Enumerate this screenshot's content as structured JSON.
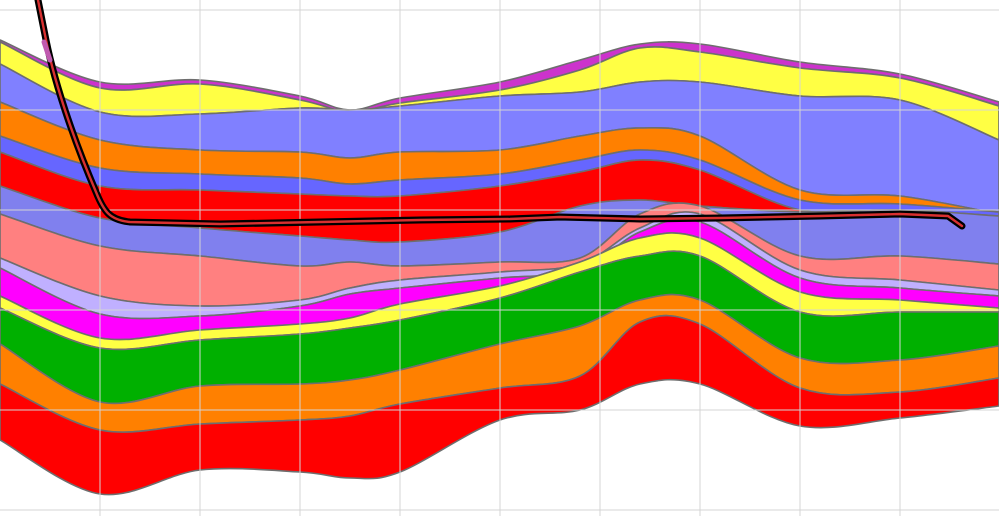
{
  "diagram": {
    "type": "geological-cross-section",
    "grid": true,
    "well_path": {
      "outer_color": "#000000",
      "inner_color": "#d83030",
      "top_segment_color": "#c05ab0"
    },
    "layers": [
      {
        "name": "layer-magenta-top",
        "color": "#cc33cc"
      },
      {
        "name": "layer-yellow-1",
        "color": "#ffff44"
      },
      {
        "name": "layer-blue-1",
        "color": "#8080ff"
      },
      {
        "name": "layer-orange-1",
        "color": "#ff8000"
      },
      {
        "name": "layer-blue-2",
        "color": "#6666ff"
      },
      {
        "name": "layer-red-1",
        "color": "#ff0000"
      },
      {
        "name": "layer-blue-3",
        "color": "#8080ee"
      },
      {
        "name": "layer-pink",
        "color": "#ff8080"
      },
      {
        "name": "layer-lavender",
        "color": "#c0b0ff"
      },
      {
        "name": "layer-magenta",
        "color": "#ff00ff"
      },
      {
        "name": "layer-yellow-2",
        "color": "#ffff44"
      },
      {
        "name": "layer-green",
        "color": "#00b000"
      },
      {
        "name": "layer-orange-2",
        "color": "#ff8000"
      },
      {
        "name": "layer-red-2",
        "color": "#ff0000"
      }
    ]
  }
}
